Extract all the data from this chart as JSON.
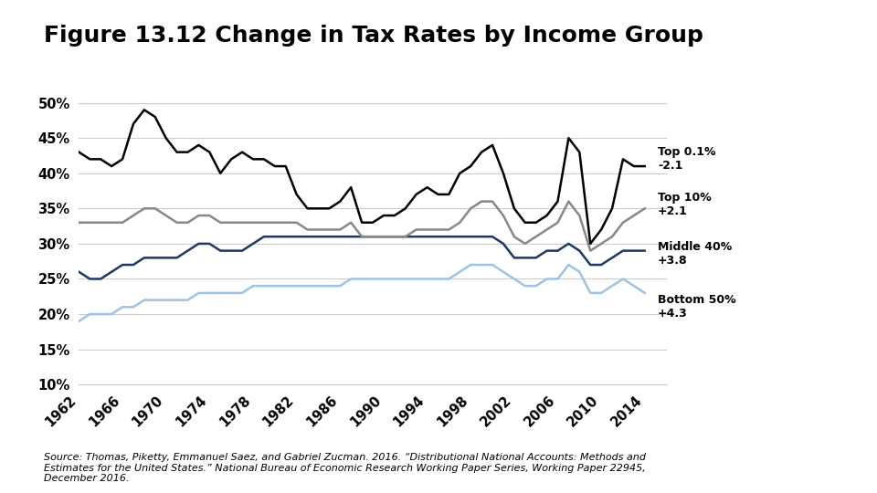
{
  "title": "Figure 13.12 Change in Tax Rates by Income Group",
  "source_text": "Source: Thomas, Piketty, Emmanuel Saez, and Gabriel Zucman. 2016. “Distributional National Accounts: Methods and\nEstimates for the United States.” National Bureau of Economic Research Working Paper Series, Working Paper 22945,\nDecember 2016.",
  "years": [
    1962,
    1963,
    1964,
    1965,
    1966,
    1967,
    1968,
    1969,
    1970,
    1971,
    1972,
    1973,
    1974,
    1975,
    1976,
    1977,
    1978,
    1979,
    1980,
    1981,
    1982,
    1983,
    1984,
    1985,
    1986,
    1987,
    1988,
    1989,
    1990,
    1991,
    1992,
    1993,
    1994,
    1995,
    1996,
    1997,
    1998,
    1999,
    2000,
    2001,
    2002,
    2003,
    2004,
    2005,
    2006,
    2007,
    2008,
    2009,
    2010,
    2011,
    2012,
    2013,
    2014
  ],
  "top01": [
    43,
    42,
    42,
    41,
    42,
    47,
    49,
    48,
    45,
    43,
    43,
    44,
    43,
    40,
    42,
    43,
    42,
    42,
    41,
    41,
    37,
    35,
    35,
    35,
    36,
    38,
    33,
    33,
    34,
    34,
    35,
    37,
    38,
    37,
    37,
    40,
    41,
    43,
    44,
    40,
    35,
    33,
    33,
    34,
    36,
    45,
    43,
    30,
    32,
    35,
    42,
    41,
    41
  ],
  "top10": [
    33,
    33,
    33,
    33,
    33,
    34,
    35,
    35,
    34,
    33,
    33,
    34,
    34,
    33,
    33,
    33,
    33,
    33,
    33,
    33,
    33,
    32,
    32,
    32,
    32,
    33,
    31,
    31,
    31,
    31,
    31,
    32,
    32,
    32,
    32,
    33,
    35,
    36,
    36,
    34,
    31,
    30,
    31,
    32,
    33,
    36,
    34,
    29,
    30,
    31,
    33,
    34,
    35
  ],
  "mid40": [
    26,
    25,
    25,
    26,
    27,
    27,
    28,
    28,
    28,
    28,
    29,
    30,
    30,
    29,
    29,
    29,
    30,
    31,
    31,
    31,
    31,
    31,
    31,
    31,
    31,
    31,
    31,
    31,
    31,
    31,
    31,
    31,
    31,
    31,
    31,
    31,
    31,
    31,
    31,
    30,
    28,
    28,
    28,
    29,
    29,
    30,
    29,
    27,
    27,
    28,
    29,
    29,
    29
  ],
  "bot50": [
    19,
    20,
    20,
    20,
    21,
    21,
    22,
    22,
    22,
    22,
    22,
    23,
    23,
    23,
    23,
    23,
    24,
    24,
    24,
    24,
    24,
    24,
    24,
    24,
    24,
    25,
    25,
    25,
    25,
    25,
    25,
    25,
    25,
    25,
    25,
    26,
    27,
    27,
    27,
    26,
    25,
    24,
    24,
    25,
    25,
    27,
    26,
    23,
    23,
    24,
    25,
    24,
    23
  ],
  "colors": {
    "top01": "#000000",
    "top10": "#888888",
    "mid40": "#1f3864",
    "bot50": "#9dc3e6"
  },
  "ylim": [
    10,
    52
  ],
  "yticks": [
    10,
    15,
    20,
    25,
    30,
    35,
    40,
    45,
    50
  ],
  "background_color": "#ffffff",
  "title_fontsize": 18,
  "line_width": 1.8,
  "annotation_fontsize": 9,
  "source_fontsize": 8,
  "tick_fontsize": 10.5
}
